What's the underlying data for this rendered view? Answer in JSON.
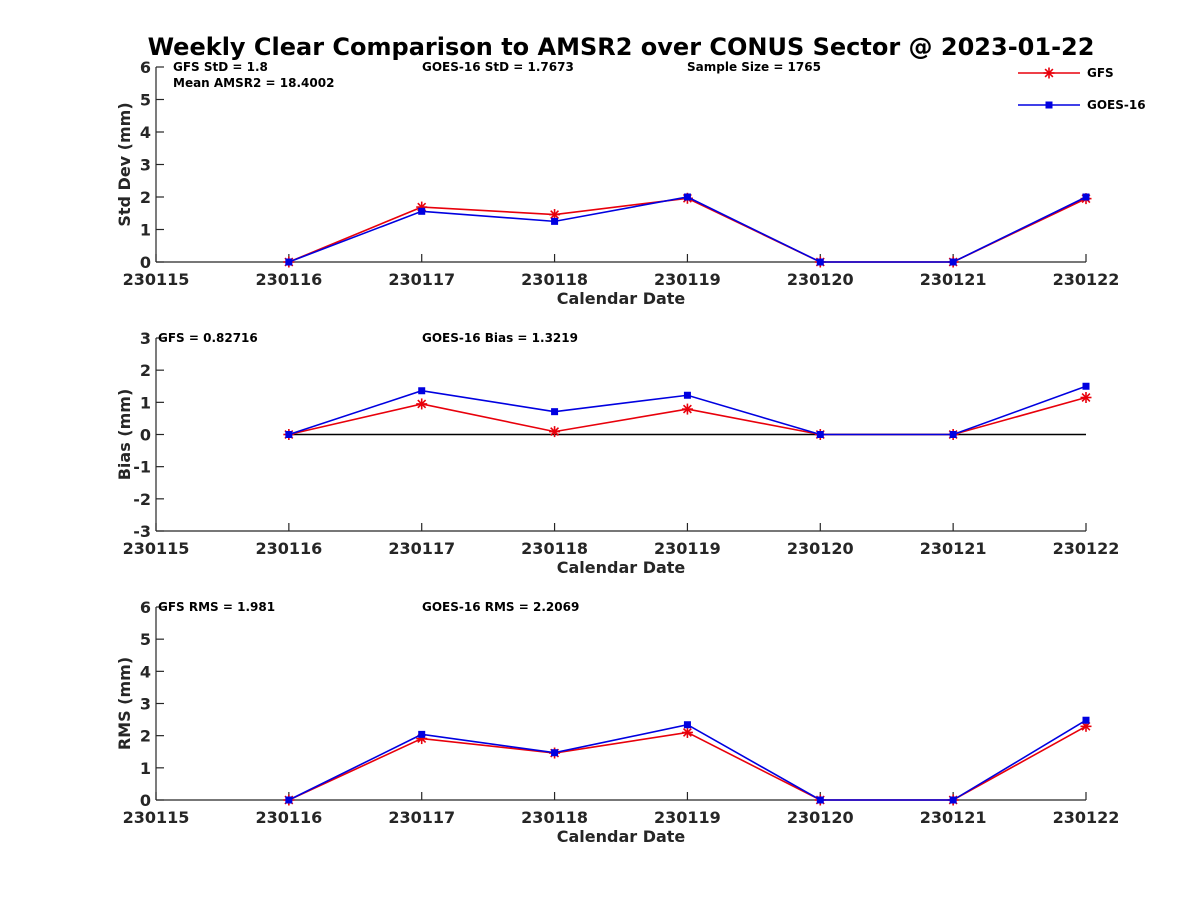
{
  "chart_data": {
    "title": "Weekly Clear Comparison to AMSR2 over CONUS Sector @ 2023-01-22",
    "legend": {
      "placement": "top-right",
      "entries": [
        {
          "name": "GFS",
          "color": "#e8000b",
          "marker": "asterisk"
        },
        {
          "name": "GOES-16",
          "color": "#0000e0",
          "marker": "square"
        }
      ]
    },
    "panels": [
      {
        "type": "line",
        "ylabel": "Std Dev (mm)",
        "xlabel": "Calendar Date",
        "ylim": [
          0,
          6
        ],
        "yticks": [
          0,
          1,
          2,
          3,
          4,
          5,
          6
        ],
        "x": [
          "230115",
          "230116",
          "230117",
          "230118",
          "230119",
          "230120",
          "230121",
          "230122"
        ],
        "zero_line": false,
        "annotations": [
          "GFS StD = 1.8",
          "Mean AMSR2 = 18.4002",
          "GOES-16 StD = 1.7673",
          "Sample Size = 1765"
        ],
        "series": [
          {
            "name": "GFS",
            "color": "#e8000b",
            "marker": "asterisk",
            "x": [
              "230116",
              "230117",
              "230118",
              "230119",
              "230120",
              "230121",
              "230122"
            ],
            "values": [
              0,
              1.69,
              1.46,
              1.96,
              0,
              0,
              1.95
            ]
          },
          {
            "name": "GOES-16",
            "color": "#0000e0",
            "marker": "square",
            "x": [
              "230116",
              "230117",
              "230118",
              "230119",
              "230120",
              "230121",
              "230122"
            ],
            "values": [
              0,
              1.56,
              1.25,
              2.0,
              0,
              0,
              2.0
            ]
          }
        ]
      },
      {
        "type": "line",
        "ylabel": "Bias (mm)",
        "xlabel": "Calendar Date",
        "ylim": [
          -3,
          3
        ],
        "yticks": [
          -3,
          -2,
          -1,
          0,
          1,
          2,
          3
        ],
        "x": [
          "230115",
          "230116",
          "230117",
          "230118",
          "230119",
          "230120",
          "230121",
          "230122"
        ],
        "zero_line": true,
        "annotations": [
          "GFS = 0.82716",
          "GOES-16 Bias  = 1.3219"
        ],
        "series": [
          {
            "name": "GFS",
            "color": "#e8000b",
            "marker": "asterisk",
            "x": [
              "230116",
              "230117",
              "230118",
              "230119",
              "230120",
              "230121",
              "230122"
            ],
            "values": [
              0,
              0.95,
              0.09,
              0.79,
              0,
              0,
              1.15
            ]
          },
          {
            "name": "GOES-16",
            "color": "#0000e0",
            "marker": "square",
            "x": [
              "230116",
              "230117",
              "230118",
              "230119",
              "230120",
              "230121",
              "230122"
            ],
            "values": [
              0,
              1.36,
              0.71,
              1.22,
              0,
              0,
              1.5
            ]
          }
        ]
      },
      {
        "type": "line",
        "ylabel": "RMS (mm)",
        "xlabel": "Calendar Date",
        "ylim": [
          0,
          6
        ],
        "yticks": [
          0,
          1,
          2,
          3,
          4,
          5,
          6
        ],
        "x": [
          "230115",
          "230116",
          "230117",
          "230118",
          "230119",
          "230120",
          "230121",
          "230122"
        ],
        "zero_line": false,
        "annotations": [
          "GFS RMS = 1.981",
          "GOES-16 RMS = 2.2069"
        ],
        "series": [
          {
            "name": "GFS",
            "color": "#e8000b",
            "marker": "asterisk",
            "x": [
              "230116",
              "230117",
              "230118",
              "230119",
              "230120",
              "230121",
              "230122"
            ],
            "values": [
              0,
              1.91,
              1.46,
              2.1,
              0,
              0,
              2.29
            ]
          },
          {
            "name": "GOES-16",
            "color": "#0000e0",
            "marker": "square",
            "x": [
              "230116",
              "230117",
              "230118",
              "230119",
              "230120",
              "230121",
              "230122"
            ],
            "values": [
              0,
              2.04,
              1.47,
              2.34,
              0,
              0,
              2.48
            ]
          }
        ]
      }
    ]
  }
}
